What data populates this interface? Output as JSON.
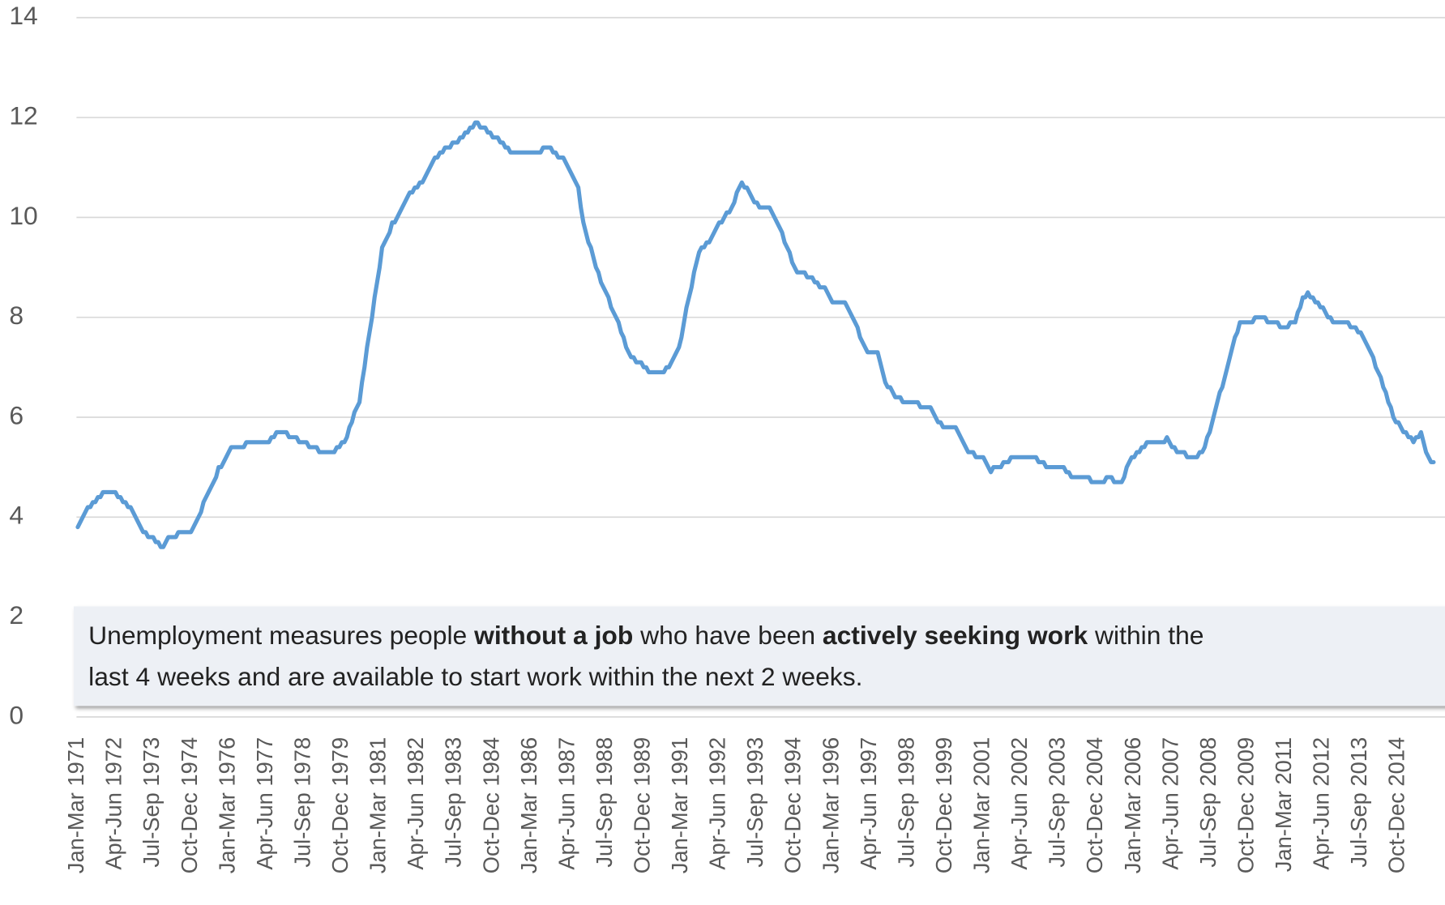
{
  "chart_data": {
    "type": "line",
    "categories": [
      "Jan-Mar 1971",
      null,
      null,
      null,
      null,
      null,
      null,
      null,
      null,
      null,
      null,
      null,
      null,
      null,
      null,
      "Apr-Jun 1972",
      null,
      null,
      null,
      null,
      null,
      null,
      null,
      null,
      null,
      null,
      null,
      null,
      null,
      null,
      "Jul-Sep 1973",
      null,
      null,
      null,
      null,
      null,
      null,
      null,
      null,
      null,
      null,
      null,
      null,
      null,
      null,
      "Oct-Dec 1974",
      null,
      null,
      null,
      null,
      null,
      null,
      null,
      null,
      null,
      null,
      null,
      null,
      null,
      null,
      "Jan-Mar 1976",
      null,
      null,
      null,
      null,
      null,
      null,
      null,
      null,
      null,
      null,
      null,
      null,
      null,
      null,
      "Apr-Jun 1977",
      null,
      null,
      null,
      null,
      null,
      null,
      null,
      null,
      null,
      null,
      null,
      null,
      null,
      null,
      "Jul-Sep 1978",
      null,
      null,
      null,
      null,
      null,
      null,
      null,
      null,
      null,
      null,
      null,
      null,
      null,
      null,
      "Oct-Dec 1979",
      null,
      null,
      null,
      null,
      null,
      null,
      null,
      null,
      null,
      null,
      null,
      null,
      null,
      null,
      "Jan-Mar 1981",
      null,
      null,
      null,
      null,
      null,
      null,
      null,
      null,
      null,
      null,
      null,
      null,
      null,
      null,
      "Apr-Jun 1982",
      null,
      null,
      null,
      null,
      null,
      null,
      null,
      null,
      null,
      null,
      null,
      null,
      null,
      null,
      "Jul-Sep 1983",
      null,
      null,
      null,
      null,
      null,
      null,
      null,
      null,
      null,
      null,
      null,
      null,
      null,
      null,
      "Oct-Dec 1984",
      null,
      null,
      null,
      null,
      null,
      null,
      null,
      null,
      null,
      null,
      null,
      null,
      null,
      null,
      "Jan-Mar 1986",
      null,
      null,
      null,
      null,
      null,
      null,
      null,
      null,
      null,
      null,
      null,
      null,
      null,
      null,
      "Apr-Jun 1987",
      null,
      null,
      null,
      null,
      null,
      null,
      null,
      null,
      null,
      null,
      null,
      null,
      null,
      null,
      "Jul-Sep 1988",
      null,
      null,
      null,
      null,
      null,
      null,
      null,
      null,
      null,
      null,
      null,
      null,
      null,
      null,
      "Oct-Dec 1989",
      null,
      null,
      null,
      null,
      null,
      null,
      null,
      null,
      null,
      null,
      null,
      null,
      null,
      null,
      "Jan-Mar 1991",
      null,
      null,
      null,
      null,
      null,
      null,
      null,
      null,
      null,
      null,
      null,
      null,
      null,
      null,
      "Apr-Jun 1992",
      null,
      null,
      null,
      null,
      null,
      null,
      null,
      null,
      null,
      null,
      null,
      null,
      null,
      null,
      "Jul-Sep 1993",
      null,
      null,
      null,
      null,
      null,
      null,
      null,
      null,
      null,
      null,
      null,
      null,
      null,
      null,
      "Oct-Dec 1994",
      null,
      null,
      null,
      null,
      null,
      null,
      null,
      null,
      null,
      null,
      null,
      null,
      null,
      null,
      "Jan-Mar 1996",
      null,
      null,
      null,
      null,
      null,
      null,
      null,
      null,
      null,
      null,
      null,
      null,
      null,
      null,
      "Apr-Jun 1997",
      null,
      null,
      null,
      null,
      null,
      null,
      null,
      null,
      null,
      null,
      null,
      null,
      null,
      null,
      "Jul-Sep 1998",
      null,
      null,
      null,
      null,
      null,
      null,
      null,
      null,
      null,
      null,
      null,
      null,
      null,
      null,
      "Oct-Dec 1999",
      null,
      null,
      null,
      null,
      null,
      null,
      null,
      null,
      null,
      null,
      null,
      null,
      null,
      null,
      "Jan-Mar 2001",
      null,
      null,
      null,
      null,
      null,
      null,
      null,
      null,
      null,
      null,
      null,
      null,
      null,
      null,
      "Apr-Jun 2002",
      null,
      null,
      null,
      null,
      null,
      null,
      null,
      null,
      null,
      null,
      null,
      null,
      null,
      null,
      "Jul-Sep 2003",
      null,
      null,
      null,
      null,
      null,
      null,
      null,
      null,
      null,
      null,
      null,
      null,
      null,
      null,
      "Oct-Dec 2004",
      null,
      null,
      null,
      null,
      null,
      null,
      null,
      null,
      null,
      null,
      null,
      null,
      null,
      null,
      "Jan-Mar 2006",
      null,
      null,
      null,
      null,
      null,
      null,
      null,
      null,
      null,
      null,
      null,
      null,
      null,
      null,
      "Apr-Jun 2007",
      null,
      null,
      null,
      null,
      null,
      null,
      null,
      null,
      null,
      null,
      null,
      null,
      null,
      null,
      "Jul-Sep 2008",
      null,
      null,
      null,
      null,
      null,
      null,
      null,
      null,
      null,
      null,
      null,
      null,
      null,
      null,
      "Oct-Dec 2009",
      null,
      null,
      null,
      null,
      null,
      null,
      null,
      null,
      null,
      null,
      null,
      null,
      null,
      null,
      "Jan-Mar 2011",
      null,
      null,
      null,
      null,
      null,
      null,
      null,
      null,
      null,
      null,
      null,
      null,
      null,
      null,
      "Apr-Jun 2012",
      null,
      null,
      null,
      null,
      null,
      null,
      null,
      null,
      null,
      null,
      null,
      null,
      null,
      null,
      "Jul-Sep 2013",
      null,
      null,
      null,
      null,
      null,
      null,
      null,
      null,
      null,
      null,
      null,
      null,
      null,
      null,
      "Oct-Dec 2014",
      null,
      null,
      null,
      null,
      null,
      null,
      null,
      null,
      null,
      null,
      null,
      null,
      null,
      null
    ],
    "series": [
      {
        "color": "#5b9bd5",
        "values": [
          3.8,
          3.9,
          4.0,
          4.1,
          4.2,
          4.2,
          4.3,
          4.3,
          4.4,
          4.4,
          4.5,
          4.5,
          4.5,
          4.5,
          4.5,
          4.5,
          4.4,
          4.4,
          4.3,
          4.3,
          4.2,
          4.2,
          4.1,
          4.0,
          3.9,
          3.8,
          3.7,
          3.7,
          3.6,
          3.6,
          3.6,
          3.5,
          3.5,
          3.4,
          3.4,
          3.5,
          3.6,
          3.6,
          3.6,
          3.6,
          3.7,
          3.7,
          3.7,
          3.7,
          3.7,
          3.7,
          3.8,
          3.9,
          4.0,
          4.1,
          4.3,
          4.4,
          4.5,
          4.6,
          4.7,
          4.8,
          5.0,
          5.0,
          5.1,
          5.2,
          5.3,
          5.4,
          5.4,
          5.4,
          5.4,
          5.4,
          5.4,
          5.5,
          5.5,
          5.5,
          5.5,
          5.5,
          5.5,
          5.5,
          5.5,
          5.5,
          5.5,
          5.6,
          5.6,
          5.7,
          5.7,
          5.7,
          5.7,
          5.7,
          5.6,
          5.6,
          5.6,
          5.6,
          5.5,
          5.5,
          5.5,
          5.5,
          5.4,
          5.4,
          5.4,
          5.4,
          5.3,
          5.3,
          5.3,
          5.3,
          5.3,
          5.3,
          5.3,
          5.4,
          5.4,
          5.5,
          5.5,
          5.6,
          5.8,
          5.9,
          6.1,
          6.2,
          6.3,
          6.7,
          7.0,
          7.4,
          7.7,
          8.0,
          8.4,
          8.7,
          9.0,
          9.4,
          9.5,
          9.6,
          9.7,
          9.9,
          9.9,
          10.0,
          10.1,
          10.2,
          10.3,
          10.4,
          10.5,
          10.5,
          10.6,
          10.6,
          10.7,
          10.7,
          10.8,
          10.9,
          11.0,
          11.1,
          11.2,
          11.2,
          11.3,
          11.3,
          11.4,
          11.4,
          11.4,
          11.5,
          11.5,
          11.5,
          11.6,
          11.6,
          11.7,
          11.7,
          11.8,
          11.8,
          11.9,
          11.9,
          11.8,
          11.8,
          11.8,
          11.7,
          11.7,
          11.6,
          11.6,
          11.6,
          11.5,
          11.5,
          11.4,
          11.4,
          11.3,
          11.3,
          11.3,
          11.3,
          11.3,
          11.3,
          11.3,
          11.3,
          11.3,
          11.3,
          11.3,
          11.3,
          11.3,
          11.4,
          11.4,
          11.4,
          11.4,
          11.3,
          11.3,
          11.2,
          11.2,
          11.2,
          11.1,
          11.0,
          10.9,
          10.8,
          10.7,
          10.6,
          10.2,
          9.9,
          9.7,
          9.5,
          9.4,
          9.2,
          9.0,
          8.9,
          8.7,
          8.6,
          8.5,
          8.4,
          8.2,
          8.1,
          8.0,
          7.9,
          7.7,
          7.6,
          7.4,
          7.3,
          7.2,
          7.2,
          7.1,
          7.1,
          7.1,
          7.0,
          7.0,
          6.9,
          6.9,
          6.9,
          6.9,
          6.9,
          6.9,
          6.9,
          7.0,
          7.0,
          7.1,
          7.2,
          7.3,
          7.4,
          7.6,
          7.9,
          8.2,
          8.4,
          8.6,
          8.9,
          9.1,
          9.3,
          9.4,
          9.4,
          9.5,
          9.5,
          9.6,
          9.7,
          9.8,
          9.9,
          9.9,
          10.0,
          10.1,
          10.1,
          10.2,
          10.3,
          10.5,
          10.6,
          10.7,
          10.6,
          10.6,
          10.5,
          10.4,
          10.3,
          10.3,
          10.2,
          10.2,
          10.2,
          10.2,
          10.2,
          10.1,
          10.0,
          9.9,
          9.8,
          9.7,
          9.5,
          9.4,
          9.3,
          9.1,
          9.0,
          8.9,
          8.9,
          8.9,
          8.9,
          8.8,
          8.8,
          8.8,
          8.7,
          8.7,
          8.6,
          8.6,
          8.6,
          8.5,
          8.4,
          8.3,
          8.3,
          8.3,
          8.3,
          8.3,
          8.3,
          8.2,
          8.1,
          8.0,
          7.9,
          7.8,
          7.6,
          7.5,
          7.4,
          7.3,
          7.3,
          7.3,
          7.3,
          7.3,
          7.1,
          6.9,
          6.7,
          6.6,
          6.6,
          6.5,
          6.4,
          6.4,
          6.4,
          6.3,
          6.3,
          6.3,
          6.3,
          6.3,
          6.3,
          6.3,
          6.2,
          6.2,
          6.2,
          6.2,
          6.2,
          6.1,
          6.0,
          5.9,
          5.9,
          5.8,
          5.8,
          5.8,
          5.8,
          5.8,
          5.8,
          5.7,
          5.6,
          5.5,
          5.4,
          5.3,
          5.3,
          5.3,
          5.2,
          5.2,
          5.2,
          5.2,
          5.1,
          5.0,
          4.9,
          5.0,
          5.0,
          5.0,
          5.0,
          5.1,
          5.1,
          5.1,
          5.2,
          5.2,
          5.2,
          5.2,
          5.2,
          5.2,
          5.2,
          5.2,
          5.2,
          5.2,
          5.2,
          5.1,
          5.1,
          5.1,
          5.0,
          5.0,
          5.0,
          5.0,
          5.0,
          5.0,
          5.0,
          5.0,
          4.9,
          4.9,
          4.8,
          4.8,
          4.8,
          4.8,
          4.8,
          4.8,
          4.8,
          4.8,
          4.7,
          4.7,
          4.7,
          4.7,
          4.7,
          4.7,
          4.8,
          4.8,
          4.8,
          4.7,
          4.7,
          4.7,
          4.7,
          4.8,
          5.0,
          5.1,
          5.2,
          5.2,
          5.3,
          5.3,
          5.4,
          5.4,
          5.5,
          5.5,
          5.5,
          5.5,
          5.5,
          5.5,
          5.5,
          5.5,
          5.6,
          5.5,
          5.4,
          5.4,
          5.3,
          5.3,
          5.3,
          5.3,
          5.2,
          5.2,
          5.2,
          5.2,
          5.2,
          5.3,
          5.3,
          5.4,
          5.6,
          5.7,
          5.9,
          6.1,
          6.3,
          6.5,
          6.6,
          6.8,
          7.0,
          7.2,
          7.4,
          7.6,
          7.7,
          7.9,
          7.9,
          7.9,
          7.9,
          7.9,
          7.9,
          8.0,
          8.0,
          8.0,
          8.0,
          8.0,
          7.9,
          7.9,
          7.9,
          7.9,
          7.9,
          7.8,
          7.8,
          7.8,
          7.8,
          7.9,
          7.9,
          7.9,
          8.1,
          8.2,
          8.4,
          8.4,
          8.5,
          8.4,
          8.4,
          8.3,
          8.3,
          8.2,
          8.2,
          8.1,
          8.0,
          8.0,
          7.9,
          7.9,
          7.9,
          7.9,
          7.9,
          7.9,
          7.9,
          7.8,
          7.8,
          7.8,
          7.7,
          7.7,
          7.6,
          7.5,
          7.4,
          7.3,
          7.2,
          7.0,
          6.9,
          6.8,
          6.6,
          6.5,
          6.3,
          6.2,
          6.0,
          5.9,
          5.9,
          5.8,
          5.7,
          5.7,
          5.6,
          5.6,
          5.5,
          5.6,
          5.6,
          5.7,
          5.5,
          5.3,
          5.2,
          5.1,
          5.1
        ]
      }
    ],
    "ylim": [
      0,
      14
    ],
    "yticks": [
      0,
      2,
      4,
      6,
      8,
      10,
      12,
      14
    ],
    "grid": true,
    "annotation": [
      [
        {
          "text": "Unemployment measures people ",
          "bold": false
        },
        {
          "text": "without a job",
          "bold": true
        },
        {
          "text": " who have been ",
          "bold": false
        },
        {
          "text": "actively seeking work",
          "bold": true
        },
        {
          "text": " within the",
          "bold": false
        }
      ],
      [
        {
          "text": "last 4 weeks and are available to start work within the next 2 weeks.",
          "bold": false
        }
      ]
    ]
  }
}
